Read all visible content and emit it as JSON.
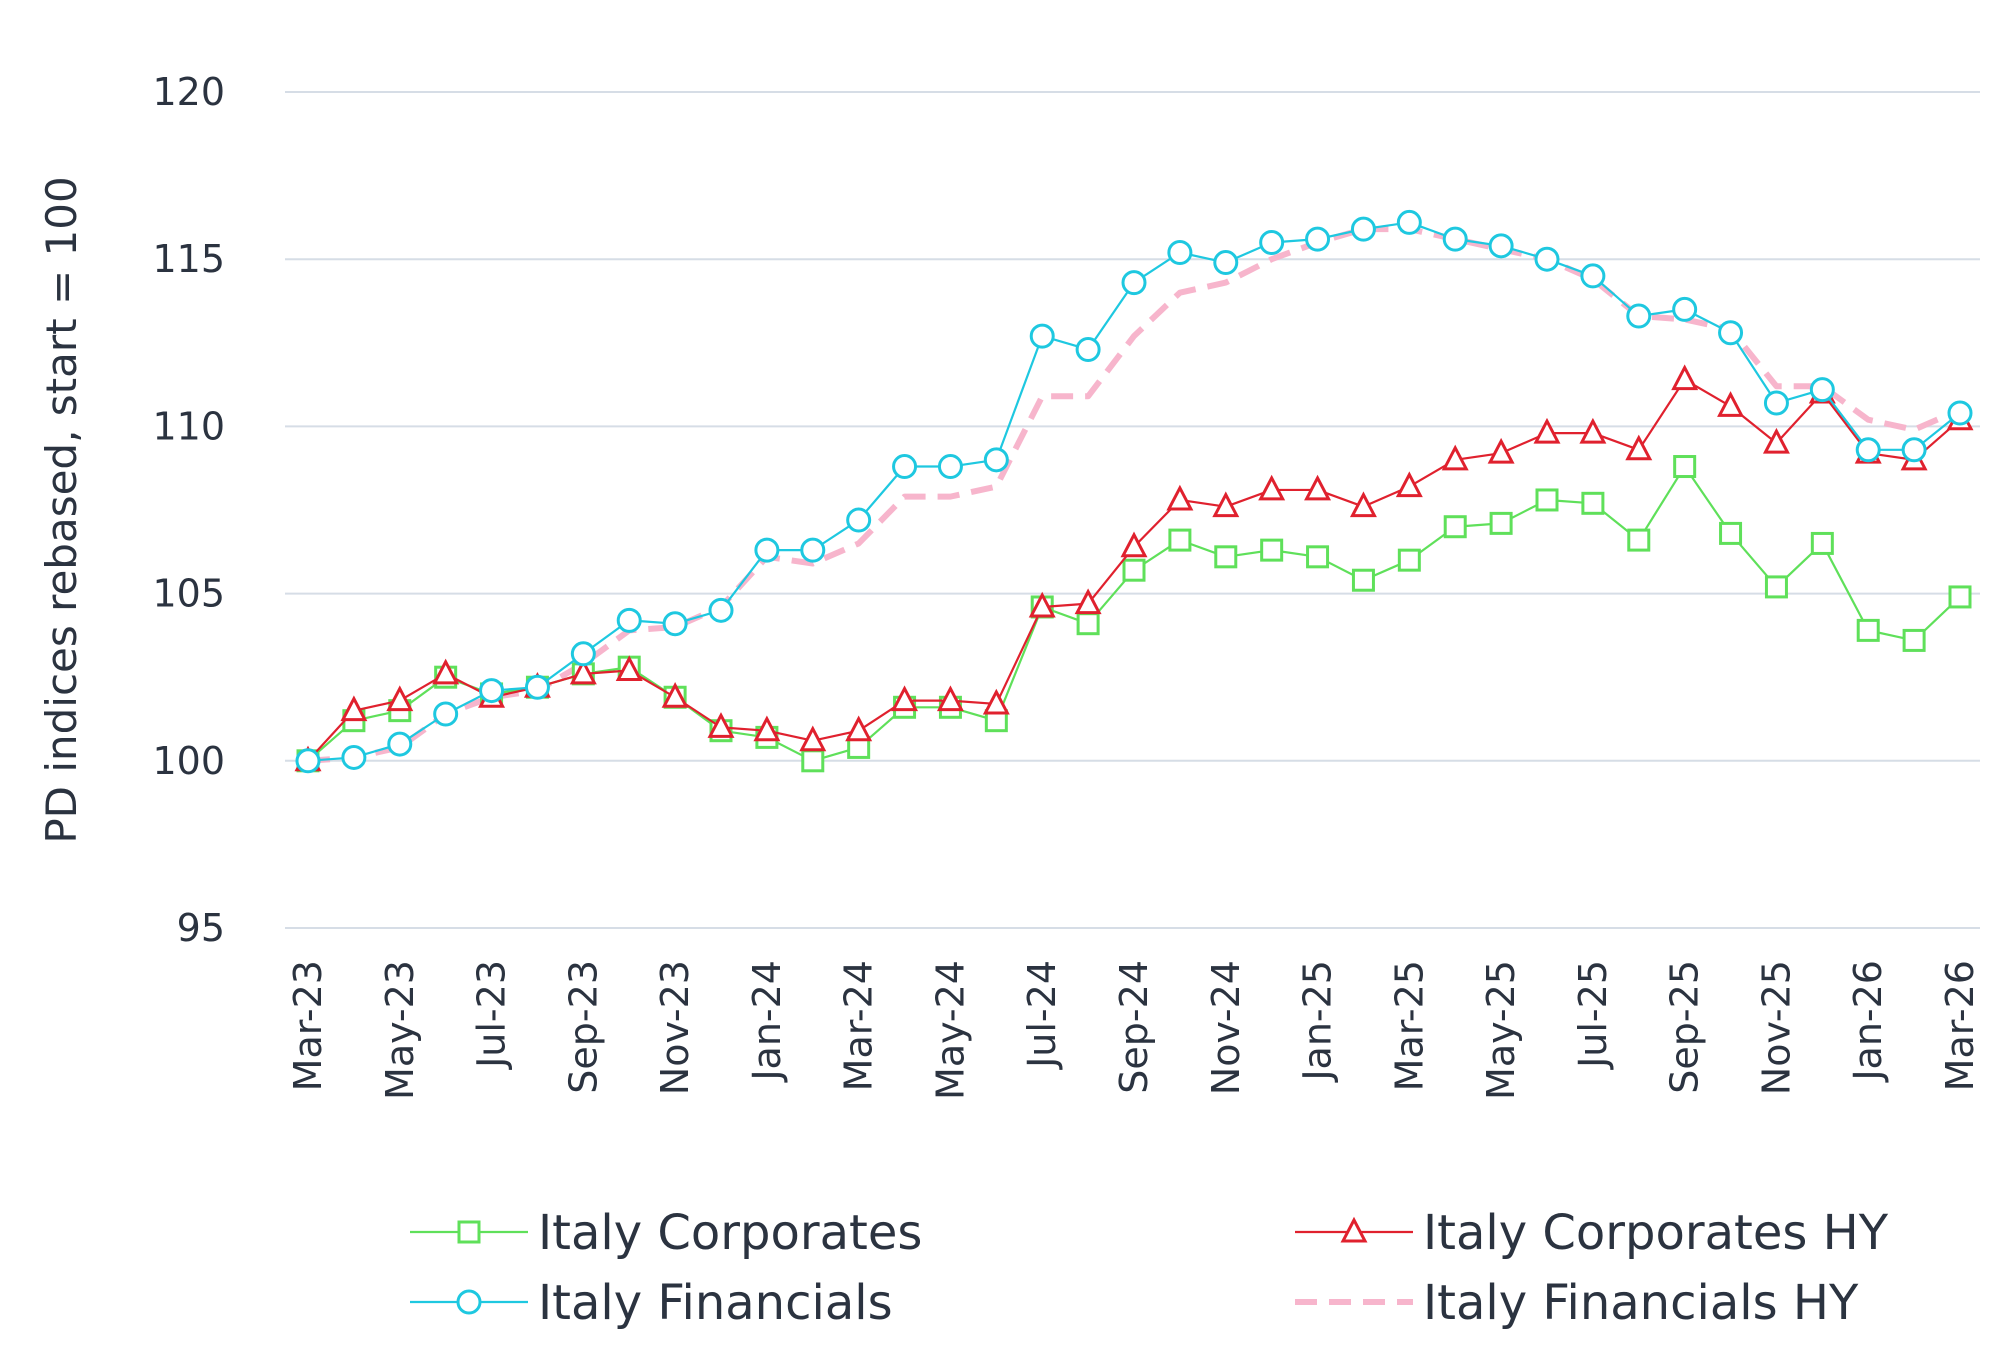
{
  "chart_data": {
    "type": "line",
    "ylabel": "PD indices rebased, start = 100",
    "xlabel": "",
    "ylim": [
      95,
      120
    ],
    "yticks": [
      95,
      100,
      105,
      110,
      115,
      120
    ],
    "grid": "horizontal",
    "legend_position": "bottom",
    "x": [
      "Mar-23",
      "Apr-23",
      "May-23",
      "Jun-23",
      "Jul-23",
      "Aug-23",
      "Sep-23",
      "Oct-23",
      "Nov-23",
      "Dec-23",
      "Jan-24",
      "Feb-24",
      "Mar-24",
      "Apr-24",
      "May-24",
      "Jun-24",
      "Jul-24",
      "Aug-24",
      "Sep-24",
      "Oct-24",
      "Nov-24",
      "Dec-24",
      "Jan-25",
      "Feb-25",
      "Mar-25",
      "Apr-25",
      "May-25",
      "Jun-25",
      "Jul-25",
      "Aug-25",
      "Sep-25",
      "Oct-25",
      "Nov-25",
      "Dec-25",
      "Jan-26",
      "Feb-26",
      "Mar-26"
    ],
    "tick_labels": [
      "Mar-23",
      "May-23",
      "Jul-23",
      "Sep-23",
      "Nov-23",
      "Jan-24",
      "Mar-24",
      "May-24",
      "Jul-24",
      "Sep-24",
      "Nov-24",
      "Jan-25",
      "Mar-25",
      "May-25",
      "Jul-25",
      "Sep-25",
      "Nov-25",
      "Jan-26",
      "Mar-26"
    ],
    "series": [
      {
        "name": "Italy Corporates",
        "color": "#5fe05a",
        "marker": "square",
        "dash": "solid",
        "values": [
          100.0,
          101.2,
          101.5,
          102.5,
          102.0,
          102.2,
          102.6,
          102.8,
          101.9,
          100.9,
          100.7,
          100.0,
          100.4,
          101.6,
          101.6,
          101.2,
          104.6,
          104.1,
          105.7,
          106.6,
          106.1,
          106.3,
          106.1,
          105.4,
          106.0,
          107.0,
          107.1,
          107.8,
          107.7,
          106.6,
          108.8,
          106.8,
          105.2,
          106.5,
          103.9,
          103.6,
          104.9
        ]
      },
      {
        "name": "Italy Corporates HY",
        "color": "#e0212e",
        "marker": "triangle",
        "dash": "solid",
        "values": [
          100.0,
          101.5,
          101.8,
          102.6,
          101.9,
          102.2,
          102.6,
          102.7,
          101.9,
          101.0,
          100.9,
          100.6,
          100.9,
          101.8,
          101.8,
          101.7,
          104.6,
          104.7,
          106.4,
          107.8,
          107.6,
          108.1,
          108.1,
          107.6,
          108.2,
          109.0,
          109.2,
          109.8,
          109.8,
          109.3,
          111.4,
          110.6,
          109.5,
          111.0,
          109.2,
          109.0,
          110.2
        ]
      },
      {
        "name": "Italy Financials",
        "color": "#1ec8e0",
        "marker": "circle",
        "dash": "solid",
        "values": [
          100.0,
          100.1,
          100.5,
          101.4,
          102.1,
          102.2,
          103.2,
          104.2,
          104.1,
          104.5,
          106.3,
          106.3,
          107.2,
          108.8,
          108.8,
          109.0,
          112.7,
          112.3,
          114.3,
          115.2,
          114.9,
          115.5,
          115.6,
          115.9,
          116.1,
          115.6,
          115.4,
          115.0,
          114.5,
          113.3,
          113.5,
          112.8,
          110.7,
          111.1,
          109.3,
          109.3,
          110.4
        ]
      },
      {
        "name": "Italy Financials HY",
        "color": "#f7b5cc",
        "marker": "none",
        "dash": "dashed",
        "values": [
          100.0,
          100.1,
          100.4,
          101.4,
          101.9,
          102.1,
          102.9,
          103.9,
          104.0,
          104.6,
          106.1,
          105.9,
          106.5,
          107.9,
          107.9,
          108.2,
          110.9,
          110.9,
          112.7,
          114.0,
          114.3,
          115.0,
          115.5,
          115.9,
          115.9,
          115.6,
          115.3,
          115.0,
          114.4,
          113.3,
          113.2,
          112.9,
          111.2,
          111.2,
          110.2,
          109.9,
          110.5
        ]
      }
    ]
  }
}
